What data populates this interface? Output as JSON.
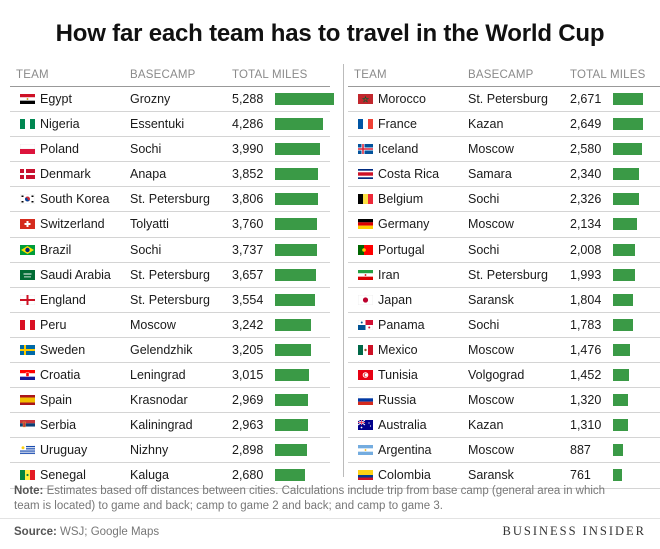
{
  "title": "How far each team has to travel in the World Cup",
  "headers": {
    "team": "TEAM",
    "basecamp": "BASECAMP",
    "miles": "TOTAL MILES"
  },
  "note_label": "Note:",
  "note_text": "Estimates based off distances between cities. Calculations include trip from base camp (general area in which team is located) to game and back; camp to game 2 and back; and camp to game 3.",
  "source_label": "Source:",
  "source_text": "WSJ; Google Maps",
  "brand": "BUSINESS INSIDER",
  "colors": {
    "bar": "#3a9a46"
  },
  "chart_data": {
    "type": "bar",
    "title": "How far each team has to travel in the World Cup",
    "value_label": "TOTAL MILES",
    "max_value": 5288,
    "left": [
      {
        "team": "Egypt",
        "basecamp": "Grozny",
        "miles": 5288,
        "miles_label": "5,288",
        "flag": "egypt-flag"
      },
      {
        "team": "Nigeria",
        "basecamp": "Essentuki",
        "miles": 4286,
        "miles_label": "4,286",
        "flag": "nigeria-flag"
      },
      {
        "team": "Poland",
        "basecamp": "Sochi",
        "miles": 3990,
        "miles_label": "3,990",
        "flag": "poland-flag"
      },
      {
        "team": "Denmark",
        "basecamp": "Anapa",
        "miles": 3852,
        "miles_label": "3,852",
        "flag": "denmark-flag"
      },
      {
        "team": "South Korea",
        "basecamp": "St. Petersburg",
        "miles": 3806,
        "miles_label": "3,806",
        "flag": "south-korea-flag"
      },
      {
        "team": "Switzerland",
        "basecamp": "Tolyatti",
        "miles": 3760,
        "miles_label": "3,760",
        "flag": "switzerland-flag"
      },
      {
        "team": "Brazil",
        "basecamp": "Sochi",
        "miles": 3737,
        "miles_label": "3,737",
        "flag": "brazil-flag"
      },
      {
        "team": "Saudi Arabia",
        "basecamp": "St. Petersburg",
        "miles": 3657,
        "miles_label": "3,657",
        "flag": "saudi-arabia-flag"
      },
      {
        "team": "England",
        "basecamp": "St. Petersburg",
        "miles": 3554,
        "miles_label": "3,554",
        "flag": "england-flag"
      },
      {
        "team": "Peru",
        "basecamp": "Moscow",
        "miles": 3242,
        "miles_label": "3,242",
        "flag": "peru-flag"
      },
      {
        "team": "Sweden",
        "basecamp": "Gelendzhik",
        "miles": 3205,
        "miles_label": "3,205",
        "flag": "sweden-flag"
      },
      {
        "team": "Croatia",
        "basecamp": "Leningrad",
        "miles": 3015,
        "miles_label": "3,015",
        "flag": "croatia-flag"
      },
      {
        "team": "Spain",
        "basecamp": "Krasnodar",
        "miles": 2969,
        "miles_label": "2,969",
        "flag": "spain-flag"
      },
      {
        "team": "Serbia",
        "basecamp": "Kaliningrad",
        "miles": 2963,
        "miles_label": "2,963",
        "flag": "serbia-flag"
      },
      {
        "team": "Uruguay",
        "basecamp": "Nizhny",
        "miles": 2898,
        "miles_label": "2,898",
        "flag": "uruguay-flag"
      },
      {
        "team": "Senegal",
        "basecamp": "Kaluga",
        "miles": 2680,
        "miles_label": "2,680",
        "flag": "senegal-flag"
      }
    ],
    "right": [
      {
        "team": "Morocco",
        "basecamp": "St. Petersburg",
        "miles": 2671,
        "miles_label": "2,671",
        "flag": "morocco-flag"
      },
      {
        "team": "France",
        "basecamp": "Kazan",
        "miles": 2649,
        "miles_label": "2,649",
        "flag": "france-flag"
      },
      {
        "team": "Iceland",
        "basecamp": "Moscow",
        "miles": 2580,
        "miles_label": "2,580",
        "flag": "iceland-flag"
      },
      {
        "team": "Costa Rica",
        "basecamp": "Samara",
        "miles": 2340,
        "miles_label": "2,340",
        "flag": "costa-rica-flag"
      },
      {
        "team": "Belgium",
        "basecamp": "Sochi",
        "miles": 2326,
        "miles_label": "2,326",
        "flag": "belgium-flag"
      },
      {
        "team": "Germany",
        "basecamp": "Moscow",
        "miles": 2134,
        "miles_label": "2,134",
        "flag": "germany-flag"
      },
      {
        "team": "Portugal",
        "basecamp": "Sochi",
        "miles": 2008,
        "miles_label": "2,008",
        "flag": "portugal-flag"
      },
      {
        "team": "Iran",
        "basecamp": "St. Petersburg",
        "miles": 1993,
        "miles_label": "1,993",
        "flag": "iran-flag"
      },
      {
        "team": "Japan",
        "basecamp": "Saransk",
        "miles": 1804,
        "miles_label": "1,804",
        "flag": "japan-flag"
      },
      {
        "team": "Panama",
        "basecamp": "Sochi",
        "miles": 1783,
        "miles_label": "1,783",
        "flag": "panama-flag"
      },
      {
        "team": "Mexico",
        "basecamp": "Moscow",
        "miles": 1476,
        "miles_label": "1,476",
        "flag": "mexico-flag"
      },
      {
        "team": "Tunisia",
        "basecamp": "Volgograd",
        "miles": 1452,
        "miles_label": "1,452",
        "flag": "tunisia-flag"
      },
      {
        "team": "Russia",
        "basecamp": "Moscow",
        "miles": 1320,
        "miles_label": "1,320",
        "flag": "russia-flag"
      },
      {
        "team": "Australia",
        "basecamp": "Kazan",
        "miles": 1310,
        "miles_label": "1,310",
        "flag": "australia-flag"
      },
      {
        "team": "Argentina",
        "basecamp": "Moscow",
        "miles": 887,
        "miles_label": "887",
        "flag": "argentina-flag"
      },
      {
        "team": "Colombia",
        "basecamp": "Saransk",
        "miles": 761,
        "miles_label": "761",
        "flag": "colombia-flag"
      }
    ]
  }
}
